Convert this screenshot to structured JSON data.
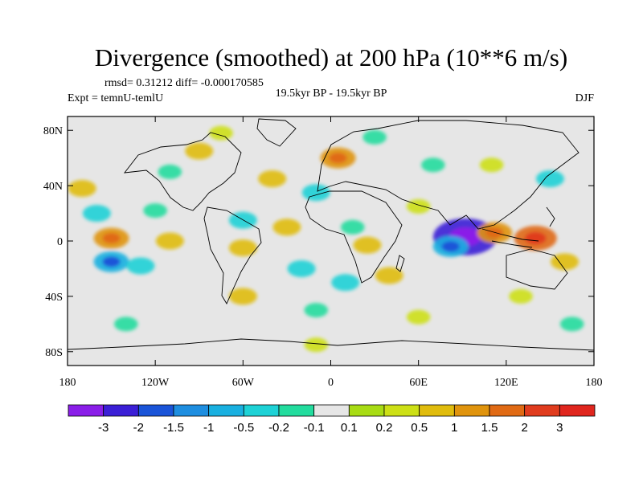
{
  "chart_data": {
    "type": "heatmap",
    "title": "Divergence (smoothed) at 200 hPa (10**6 m/s)",
    "stats": "rmsd= 0.31212 diff= -0.000170585",
    "experiment": "Expt = temnU-temlU",
    "period": "19.5kyr BP - 19.5kyr BP",
    "season": "DJF",
    "x_range": [
      -180,
      180
    ],
    "y_range": [
      -90,
      90
    ],
    "x_ticks": [
      {
        "value": -180,
        "label": "180"
      },
      {
        "value": -120,
        "label": "120W"
      },
      {
        "value": -60,
        "label": "60W"
      },
      {
        "value": 0,
        "label": "0"
      },
      {
        "value": 60,
        "label": "60E"
      },
      {
        "value": 120,
        "label": "120E"
      },
      {
        "value": 180,
        "label": "180"
      }
    ],
    "y_ticks": [
      {
        "value": 80,
        "label": "80N"
      },
      {
        "value": 40,
        "label": "40N"
      },
      {
        "value": 0,
        "label": "0"
      },
      {
        "value": -40,
        "label": "40S"
      },
      {
        "value": -80,
        "label": "80S"
      }
    ],
    "colorbar": {
      "labels": [
        "-3",
        "-2",
        "-1.5",
        "-1",
        "-0.5",
        "-0.2",
        "-0.1",
        "0.1",
        "0.2",
        "0.5",
        "1",
        "1.5",
        "2",
        "3"
      ],
      "colors": [
        "#8a1ee8",
        "#3b1fd6",
        "#1a54d8",
        "#1e8ee0",
        "#19b0e0",
        "#1ed2d6",
        "#23dc9e",
        "#e6e6e6",
        "#a8dc14",
        "#cde016",
        "#e0bc0d",
        "#e0940d",
        "#e06a14",
        "#e03c1e",
        "#e0261e"
      ]
    },
    "features": [
      {
        "lon": 92,
        "lat": 3,
        "value": -3
      },
      {
        "lon": 82,
        "lat": -4,
        "value": -1
      },
      {
        "lon": 140,
        "lat": 2,
        "value": 1.5
      },
      {
        "lon": 112,
        "lat": 6,
        "value": 1
      },
      {
        "lon": -150,
        "lat": -15,
        "value": -1
      },
      {
        "lon": -130,
        "lat": -18,
        "value": -0.5
      },
      {
        "lon": -160,
        "lat": 20,
        "value": -0.5
      },
      {
        "lon": -120,
        "lat": 22,
        "value": -0.2
      },
      {
        "lon": -150,
        "lat": 2,
        "value": 1
      },
      {
        "lon": -110,
        "lat": 0,
        "value": 0.5
      },
      {
        "lon": -170,
        "lat": 38,
        "value": 0.5
      },
      {
        "lon": -90,
        "lat": 65,
        "value": 0.5
      },
      {
        "lon": -75,
        "lat": 78,
        "value": 0.2
      },
      {
        "lon": -110,
        "lat": 50,
        "value": -0.2
      },
      {
        "lon": -40,
        "lat": 45,
        "value": 0.5
      },
      {
        "lon": -10,
        "lat": 35,
        "value": -0.5
      },
      {
        "lon": 5,
        "lat": 60,
        "value": 1
      },
      {
        "lon": 30,
        "lat": 75,
        "value": -0.2
      },
      {
        "lon": 70,
        "lat": 55,
        "value": -0.2
      },
      {
        "lon": 110,
        "lat": 55,
        "value": 0.2
      },
      {
        "lon": 150,
        "lat": 45,
        "value": -0.5
      },
      {
        "lon": -60,
        "lat": 15,
        "value": -0.5
      },
      {
        "lon": -30,
        "lat": 10,
        "value": 0.5
      },
      {
        "lon": -60,
        "lat": -5,
        "value": 0.5
      },
      {
        "lon": 25,
        "lat": -3,
        "value": 0.5
      },
      {
        "lon": 15,
        "lat": 10,
        "value": -0.2
      },
      {
        "lon": -20,
        "lat": -20,
        "value": -0.5
      },
      {
        "lon": 40,
        "lat": -25,
        "value": 0.5
      },
      {
        "lon": 10,
        "lat": -30,
        "value": -0.5
      },
      {
        "lon": 60,
        "lat": 25,
        "value": 0.2
      },
      {
        "lon": -60,
        "lat": -40,
        "value": 0.5
      },
      {
        "lon": 130,
        "lat": -40,
        "value": 0.2
      },
      {
        "lon": 160,
        "lat": -15,
        "value": 0.5
      },
      {
        "lon": -140,
        "lat": -60,
        "value": -0.2
      },
      {
        "lon": 60,
        "lat": -55,
        "value": 0.2
      },
      {
        "lon": 165,
        "lat": -60,
        "value": -0.2
      },
      {
        "lon": -10,
        "lat": -50,
        "value": -0.2
      },
      {
        "lon": -10,
        "lat": -75,
        "value": 0.2
      }
    ]
  }
}
